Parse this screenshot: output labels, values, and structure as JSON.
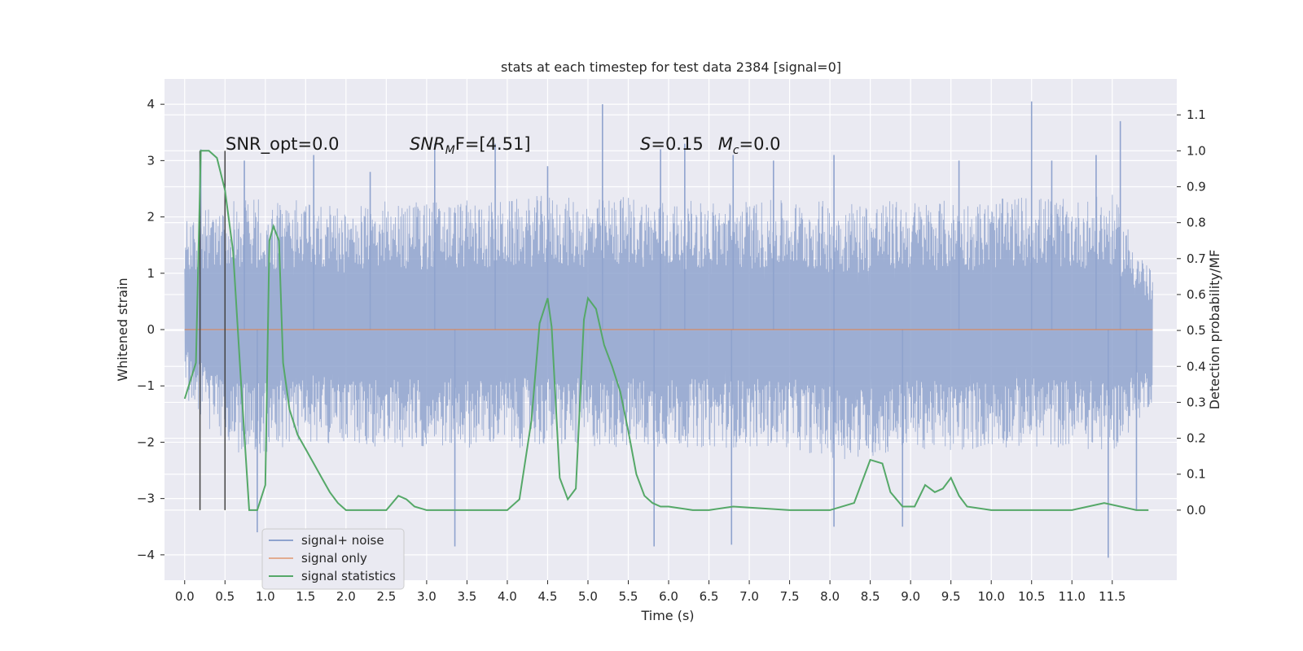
{
  "chart_data": {
    "type": "line",
    "title": "stats at each timestep for test data 2384 [signal=0]",
    "xlabel": "Time (s)",
    "ylabel": "Whitened strain",
    "y2label": "Detection probability/MF",
    "xlim": [
      -0.25,
      12.3
    ],
    "ylim": [
      -4.45,
      4.45
    ],
    "y2lim": [
      -0.195,
      1.2
    ],
    "x_ticks": [
      "0.0",
      "0.5",
      "1.0",
      "1.5",
      "2.0",
      "2.5",
      "3.0",
      "3.5",
      "4.0",
      "4.5",
      "5.0",
      "5.5",
      "6.0",
      "6.5",
      "7.0",
      "7.5",
      "8.0",
      "8.5",
      "9.0",
      "9.5",
      "10.0",
      "10.5",
      "11.0",
      "11.5"
    ],
    "y_ticks": [
      "4",
      "3",
      "2",
      "1",
      "0",
      "−1",
      "−2",
      "−3",
      "−4"
    ],
    "y2_ticks": [
      "1.1",
      "1.0",
      "0.9",
      "0.8",
      "0.7",
      "0.6",
      "0.5",
      "0.4",
      "0.3",
      "0.2",
      "0.1",
      "0.0"
    ],
    "grid": true,
    "legend_position": "lower-left",
    "annotations": {
      "snr_opt": "SNR_opt=0.0",
      "snr_mf_prefix": "SNR",
      "snr_mf_sub": "M",
      "snr_mf_suffix": "F=[4.51]",
      "s_var": "S",
      "s_val": "=0.15",
      "mc_var": "M",
      "mc_sub": "c",
      "mc_val": "=0.0"
    },
    "vlines_x": [
      0.19,
      0.5
    ],
    "series": [
      {
        "name": "signal+ noise",
        "color": "#8fa3ce",
        "envelope_upper": [
          [
            0.0,
            1.9
          ],
          [
            0.5,
            2.4
          ],
          [
            1.0,
            2.3
          ],
          [
            1.5,
            2.3
          ],
          [
            2.0,
            2.2
          ],
          [
            2.5,
            2.3
          ],
          [
            3.0,
            2.3
          ],
          [
            3.5,
            2.3
          ],
          [
            4.0,
            2.3
          ],
          [
            4.5,
            2.4
          ],
          [
            5.0,
            2.3
          ],
          [
            5.5,
            2.4
          ],
          [
            6.0,
            2.3
          ],
          [
            6.5,
            2.3
          ],
          [
            7.0,
            2.3
          ],
          [
            7.5,
            2.3
          ],
          [
            8.0,
            2.3
          ],
          [
            8.5,
            2.3
          ],
          [
            9.0,
            2.3
          ],
          [
            9.5,
            2.3
          ],
          [
            10.0,
            2.3
          ],
          [
            10.5,
            2.4
          ],
          [
            11.0,
            2.3
          ],
          [
            11.5,
            2.4
          ],
          [
            12.0,
            1.0
          ]
        ],
        "envelope_lower": [
          [
            0.0,
            -1.2
          ],
          [
            0.5,
            -2.2
          ],
          [
            1.0,
            -2.2
          ],
          [
            1.5,
            -2.0
          ],
          [
            2.0,
            -2.1
          ],
          [
            2.5,
            -2.1
          ],
          [
            3.0,
            -2.1
          ],
          [
            3.5,
            -2.1
          ],
          [
            4.0,
            -2.1
          ],
          [
            4.5,
            -2.1
          ],
          [
            5.0,
            -2.1
          ],
          [
            5.5,
            -2.1
          ],
          [
            6.0,
            -2.1
          ],
          [
            6.5,
            -2.1
          ],
          [
            7.0,
            -2.1
          ],
          [
            7.5,
            -2.1
          ],
          [
            8.0,
            -2.3
          ],
          [
            8.5,
            -2.3
          ],
          [
            9.0,
            -2.1
          ],
          [
            9.5,
            -2.2
          ],
          [
            10.0,
            -2.1
          ],
          [
            10.5,
            -2.1
          ],
          [
            11.0,
            -2.1
          ],
          [
            11.5,
            -2.2
          ],
          [
            12.0,
            -1.3
          ]
        ],
        "peaks": [
          [
            0.2,
            3.2
          ],
          [
            0.74,
            3.0
          ],
          [
            1.6,
            3.1
          ],
          [
            2.3,
            2.8
          ],
          [
            3.1,
            3.3
          ],
          [
            3.85,
            3.3
          ],
          [
            4.5,
            2.9
          ],
          [
            5.18,
            4.0
          ],
          [
            5.9,
            3.2
          ],
          [
            6.2,
            3.3
          ],
          [
            6.8,
            3.1
          ],
          [
            7.3,
            3.0
          ],
          [
            8.05,
            3.1
          ],
          [
            9.6,
            3.0
          ],
          [
            10.5,
            4.05
          ],
          [
            10.75,
            3.0
          ],
          [
            11.3,
            3.1
          ],
          [
            11.6,
            3.7
          ],
          [
            0.9,
            -3.6
          ],
          [
            3.35,
            -3.85
          ],
          [
            5.82,
            -3.85
          ],
          [
            6.78,
            -3.82
          ],
          [
            8.05,
            -3.5
          ],
          [
            8.9,
            -3.5
          ],
          [
            11.45,
            -4.05
          ],
          [
            11.8,
            -3.2
          ]
        ]
      },
      {
        "name": "signal only",
        "color": "#dd8452",
        "x": [
          0.0,
          12.0
        ],
        "y": [
          0.0,
          0.0
        ]
      },
      {
        "name": "signal statistics",
        "color": "#55a868",
        "axis": "right",
        "x": [
          0.0,
          0.14,
          0.2,
          0.3,
          0.4,
          0.5,
          0.6,
          0.7,
          0.8,
          0.84,
          0.9,
          1.0,
          1.05,
          1.1,
          1.17,
          1.22,
          1.3,
          1.4,
          1.5,
          1.6,
          1.7,
          1.8,
          1.9,
          2.0,
          2.2,
          2.5,
          2.65,
          2.75,
          2.85,
          3.0,
          3.5,
          4.0,
          4.15,
          4.3,
          4.4,
          4.5,
          4.55,
          4.65,
          4.75,
          4.85,
          4.95,
          5.0,
          5.1,
          5.2,
          5.3,
          5.4,
          5.5,
          5.6,
          5.7,
          5.8,
          5.9,
          6.0,
          6.3,
          6.5,
          6.8,
          7.5,
          8.0,
          8.3,
          8.5,
          8.65,
          8.75,
          8.9,
          9.05,
          9.18,
          9.3,
          9.4,
          9.5,
          9.6,
          9.7,
          10.0,
          11.0,
          11.4,
          11.8,
          11.95
        ],
        "y": [
          0.31,
          0.41,
          1.0,
          1.0,
          0.98,
          0.89,
          0.72,
          0.35,
          0.0,
          0.0,
          0.0,
          0.07,
          0.75,
          0.79,
          0.75,
          0.41,
          0.28,
          0.21,
          0.17,
          0.13,
          0.09,
          0.05,
          0.02,
          0.0,
          0.0,
          0.0,
          0.04,
          0.03,
          0.01,
          0.0,
          0.0,
          0.0,
          0.03,
          0.25,
          0.52,
          0.59,
          0.51,
          0.09,
          0.03,
          0.06,
          0.53,
          0.59,
          0.56,
          0.46,
          0.4,
          0.33,
          0.22,
          0.1,
          0.04,
          0.02,
          0.01,
          0.01,
          0.0,
          0.0,
          0.01,
          0.0,
          0.0,
          0.02,
          0.14,
          0.13,
          0.05,
          0.01,
          0.01,
          0.07,
          0.05,
          0.06,
          0.09,
          0.04,
          0.01,
          0.0,
          0.0,
          0.02,
          0.0,
          0.0
        ]
      }
    ]
  }
}
